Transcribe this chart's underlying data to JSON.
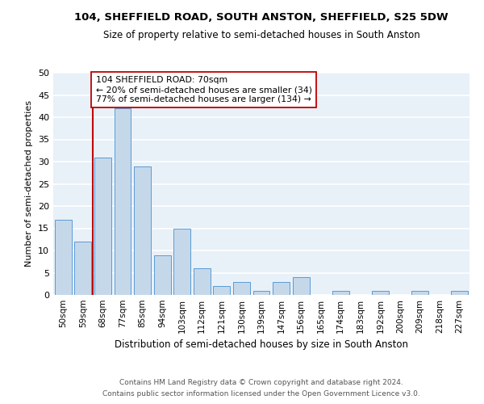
{
  "title1": "104, SHEFFIELD ROAD, SOUTH ANSTON, SHEFFIELD, S25 5DW",
  "title2": "Size of property relative to semi-detached houses in South Anston",
  "xlabel": "Distribution of semi-detached houses by size in South Anston",
  "ylabel": "Number of semi-detached properties",
  "categories": [
    "50sqm",
    "59sqm",
    "68sqm",
    "77sqm",
    "85sqm",
    "94sqm",
    "103sqm",
    "112sqm",
    "121sqm",
    "130sqm",
    "139sqm",
    "147sqm",
    "156sqm",
    "165sqm",
    "174sqm",
    "183sqm",
    "192sqm",
    "200sqm",
    "209sqm",
    "218sqm",
    "227sqm"
  ],
  "values": [
    17,
    12,
    31,
    42,
    29,
    9,
    15,
    6,
    2,
    3,
    1,
    3,
    4,
    0,
    1,
    0,
    1,
    0,
    1,
    0,
    1
  ],
  "bar_color": "#c5d8ea",
  "bar_edge_color": "#5b9bd5",
  "vline_bar_index": 2,
  "subject_label": "104 SHEFFIELD ROAD: 70sqm",
  "annotation_smaller": "← 20% of semi-detached houses are smaller (34)",
  "annotation_larger": "77% of semi-detached houses are larger (134) →",
  "vline_color": "#c00000",
  "annotation_box_edge": "#c00000",
  "ylim": [
    0,
    50
  ],
  "yticks": [
    0,
    5,
    10,
    15,
    20,
    25,
    30,
    35,
    40,
    45,
    50
  ],
  "background_color": "#e8f0f8",
  "grid_color": "#ffffff",
  "footer1": "Contains HM Land Registry data © Crown copyright and database right 2024.",
  "footer2": "Contains public sector information licensed under the Open Government Licence v3.0."
}
